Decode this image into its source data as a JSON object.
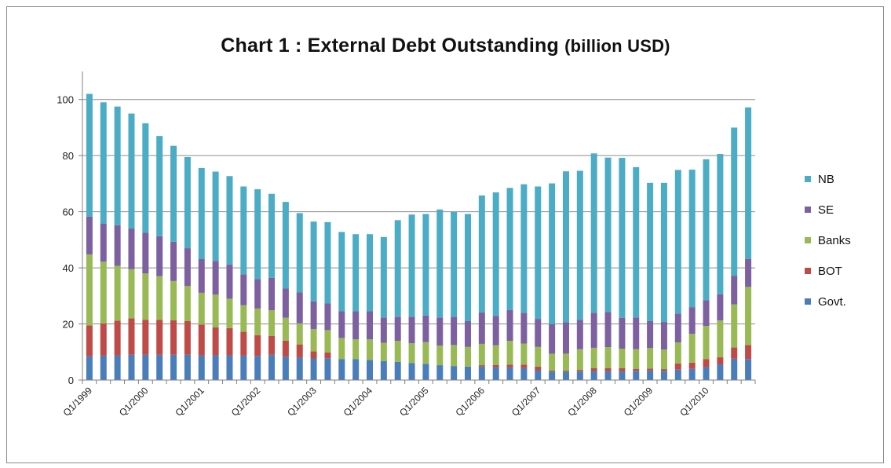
{
  "chart_data": {
    "type": "bar",
    "stacked": true,
    "title": "Chart 1 : External Debt Outstanding",
    "title_unit": "(billion USD)",
    "xlabel": "",
    "ylabel": "",
    "ylim": [
      0,
      110
    ],
    "y_ticks": [
      0,
      20,
      40,
      60,
      80,
      100
    ],
    "grid": true,
    "legend_position": "right",
    "categories": [
      "Q1/1999",
      "Q2/1999",
      "Q3/1999",
      "Q4/1999",
      "Q1/2000",
      "Q2/2000",
      "Q3/2000",
      "Q4/2000",
      "Q1/2001",
      "Q2/2001",
      "Q3/2001",
      "Q4/2001",
      "Q1/2002",
      "Q2/2002",
      "Q3/2002",
      "Q4/2002",
      "Q1/2003",
      "Q2/2003",
      "Q3/2003",
      "Q4/2003",
      "Q1/2004",
      "Q2/2004",
      "Q3/2004",
      "Q4/2004",
      "Q1/2005",
      "Q2/2005",
      "Q3/2005",
      "Q4/2005",
      "Q1/2006",
      "Q2/2006",
      "Q3/2006",
      "Q4/2006",
      "Q1/2007",
      "Q2/2007",
      "Q3/2007",
      "Q4/2007",
      "Q1/2008",
      "Q2/2008",
      "Q3/2008",
      "Q4/2008",
      "Q1/2009",
      "Q2/2009",
      "Q3/2009",
      "Q4/2009",
      "Q1/2010",
      "Q2/2010",
      "Q3/2010",
      "Q4/2010"
    ],
    "x_tick_labels": [
      "Q1/1999",
      "Q1/2000",
      "Q1/2001",
      "Q1/2002",
      "Q1/2003",
      "Q1/2004",
      "Q1/2005",
      "Q1/2006",
      "Q1/2007",
      "Q1/2008",
      "Q1/2009",
      "Q1/2010"
    ],
    "series": [
      {
        "name": "Govt.",
        "color": "#4a7ebb",
        "values": [
          8.5,
          8.7,
          8.7,
          9,
          9,
          9,
          9,
          9,
          8.8,
          8.8,
          8.8,
          8.7,
          8.6,
          9,
          8.3,
          8,
          7.7,
          7.8,
          7.5,
          7.5,
          7.2,
          6.8,
          6.5,
          6.1,
          5.8,
          5.3,
          5,
          4.8,
          4.8,
          4.6,
          4.5,
          4.3,
          3.5,
          3,
          3,
          3,
          3.2,
          3.2,
          3.1,
          3.3,
          3.4,
          3.3,
          3.7,
          4,
          4.6,
          5.6,
          7.6,
          7.5
        ]
      },
      {
        "name": "BOT",
        "color": "#be4b48",
        "values": [
          11,
          11.5,
          12.5,
          13,
          12.5,
          12.5,
          12.3,
          12,
          11,
          10,
          9.7,
          8.5,
          7.4,
          6.7,
          5.7,
          4.7,
          2.5,
          2,
          0,
          0,
          0,
          0,
          0,
          0,
          0,
          0,
          0,
          0,
          0.5,
          0.8,
          1.0,
          1.2,
          1.3,
          0.4,
          0.4,
          0.6,
          1,
          1.1,
          1.1,
          0.7,
          0.7,
          0.6,
          2.2,
          2.2,
          2.9,
          2.5,
          4.0,
          5.0
        ]
      },
      {
        "name": "Banks",
        "color": "#98b954",
        "values": [
          25.3,
          22,
          19.5,
          17.5,
          16.5,
          15.5,
          14,
          12.5,
          11.3,
          11.7,
          10.5,
          9.5,
          9.5,
          9.2,
          8.2,
          7.5,
          8,
          8,
          7.5,
          7,
          7.3,
          6.5,
          7.5,
          7,
          7.7,
          7,
          7.5,
          7,
          7.6,
          7,
          8.5,
          7.5,
          7,
          6,
          6,
          7.4,
          7.3,
          7.4,
          7,
          7,
          7.3,
          7,
          7.5,
          10.3,
          11.8,
          13.2,
          15.4,
          20.7
        ]
      },
      {
        "name": "SE",
        "color": "#7d60a0",
        "values": [
          13.5,
          13.5,
          14.5,
          14.5,
          14.5,
          14.3,
          14,
          13.5,
          12,
          12,
          12.2,
          11,
          10.5,
          11.5,
          10.5,
          11,
          9.8,
          9.5,
          9.5,
          10,
          10,
          9,
          8.5,
          9.5,
          9.5,
          10,
          10,
          9.2,
          11.2,
          10.5,
          11,
          11,
          10,
          10.5,
          11.2,
          10.5,
          12.5,
          12.5,
          11,
          11.3,
          9.6,
          9.8,
          10.3,
          9.5,
          9.2,
          9.3,
          10.2,
          10.0
        ]
      },
      {
        "name": "NB",
        "color": "#4bacc6",
        "values": [
          43.7,
          43.3,
          42.3,
          41,
          39,
          35.7,
          34.2,
          32.5,
          32.5,
          31.8,
          31.5,
          31.3,
          32,
          30,
          30.8,
          28.3,
          28.5,
          29,
          28.3,
          27.5,
          27.5,
          28.7,
          34.5,
          36.4,
          36.2,
          38.5,
          37.5,
          38.2,
          41.7,
          44,
          43.5,
          45.8,
          47.2,
          50.2,
          53.8,
          53.1,
          56.8,
          55.1,
          57,
          53.6,
          49.3,
          49.6,
          51.2,
          49,
          50.2,
          50,
          52.8,
          54.0
        ]
      }
    ]
  }
}
